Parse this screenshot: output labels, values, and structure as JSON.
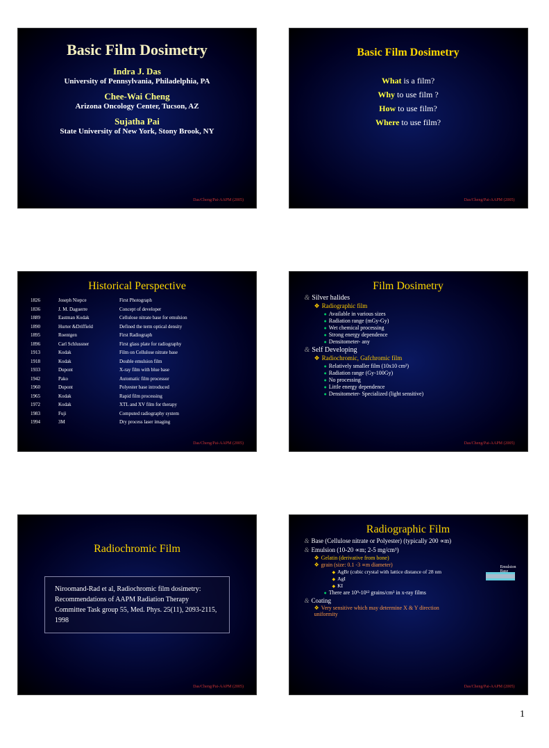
{
  "footer": "Das/Cheng/Pai-AAPM (2005)",
  "page_number": "1",
  "s1": {
    "title": "Basic Film Dosimetry",
    "a1_name": "Indra J. Das",
    "a1_inst": "University of Pennsylvania, Philadelphia, PA",
    "a2_name": "Chee-Wai Cheng",
    "a2_inst": "Arizona Oncology Center, Tucson, AZ",
    "a3_name": "Sujatha Pai",
    "a3_inst": "State University of New York, Stony Brook, NY"
  },
  "s2": {
    "title": "Basic Film Dosimetry",
    "q1_kw": "What",
    "q1_rest": " is a film?",
    "q2_kw": "Why",
    "q2_rest": " to use film ?",
    "q3_kw": "How",
    "q3_rest": " to use film?",
    "q4_kw": "Where",
    "q4_rest": " to use film?"
  },
  "s3": {
    "title": "Historical Perspective",
    "rows": [
      [
        "1826",
        "Joseph Niepce",
        "First Photograph"
      ],
      [
        "1836",
        "J. M. Daguerre",
        "Concept of developer"
      ],
      [
        "1889",
        "Eastman Kodak",
        "Cellulose nitrate base for emulsion"
      ],
      [
        "1890",
        "Hurter &Driffield",
        "Defined the term optical density"
      ],
      [
        "1895",
        "Roentgen",
        "First Radiograph"
      ],
      [
        "1896",
        "Carl Schlussner",
        "First glass plate for radiography"
      ],
      [
        "1913",
        "Kodak",
        "Film on Cellulose nitrate base"
      ],
      [
        "1918",
        "Kodak",
        "Double emulsion film"
      ],
      [
        "1933",
        "Dupont",
        "X-ray film with blue base"
      ],
      [
        "1942",
        "Pako",
        "Automatic film processor"
      ],
      [
        "1960",
        "Dupont",
        "Polyester base introduced"
      ],
      [
        "1965",
        "Kodak",
        "Rapid film processing"
      ],
      [
        "1972",
        "Kodak",
        "XTL and XV film for therapy"
      ],
      [
        "1983",
        "Fuji",
        "Computed radiography system"
      ],
      [
        "1994",
        "3M",
        "Dry process laser imaging"
      ]
    ]
  },
  "s4": {
    "title": "Film Dosimetry",
    "m1": "Silver halides",
    "m1s1": "Radiographic film",
    "m1s1a": "Available in various sizes",
    "m1s1b": "Radiation range (mGy-Gy)",
    "m1s1c": "Wet chemical processing",
    "m1s1d": "Strong energy dependence",
    "m1s1e": "Densitometer- any",
    "m2": "Self Developing",
    "m2s1": "Radiochromic, Gafchromic film",
    "m2s1a": "Relatively smaller film (10x10 cm²)",
    "m2s1b": "Radiation range (Gy-100Gy)",
    "m2s1c": "No processing",
    "m2s1d": "Little energy dependence",
    "m2s1e": "Densitometer- Specialized (light sensitive)"
  },
  "s5": {
    "title": "Radiochromic Film",
    "ref": "Niroomand-Rad et al, Radiochromic film dosimetry: Recommendations of AAPM Radiation Therapy Committee Task group 55, Med. Phys. 25(11), 2093-2115, 1998"
  },
  "s6": {
    "title": "Radiographic Film",
    "m1": "Base (Cellulose nitrate or Polyester) (typically 200 ∝m)",
    "m2": "Emulsion (10-20 ∝m; 2-5 mg/cm³)",
    "m2a": "Gelatin (derivative from bone)",
    "m2b": "grain (size: 0.1 -3 ∝m diameter)",
    "m2b1": "AgBr (cubic crystal with lattice distance of 28 nm",
    "m2b2": "AgI",
    "m2b3": "KI",
    "m2c": "There are 10⁹-10¹² grains/cm³ in x-ray films",
    "m3": "Coating",
    "m3a": "Very sensitive which may determine X & Y direction uniformity",
    "label1": "Emulsion",
    "label2": "Base"
  }
}
